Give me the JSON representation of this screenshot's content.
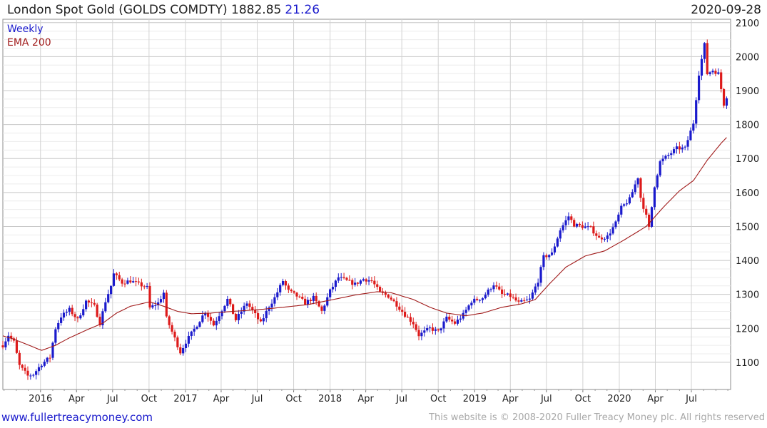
{
  "header": {
    "title": "London Spot Gold (GOLDS COMDTY)",
    "last": "1882.85",
    "change": "21.26",
    "change_color": "#1a1acc",
    "date": "2020-09-28"
  },
  "footer": {
    "website": "www.fullertreacymoney.com",
    "website_color": "#1a1acc",
    "copyright": "This website is © 2008-2020 Fuller Treacy Money plc. All rights reserved"
  },
  "chart_data": {
    "type": "candlestick",
    "timeframe": "Weekly",
    "series": [
      {
        "name": "Weekly",
        "color": "#1a1acc",
        "down_color": "#dd1a1a"
      },
      {
        "name": "EMA 200",
        "color": "#a01a1a"
      }
    ],
    "y_ticks": [
      1100,
      1200,
      1300,
      1400,
      1500,
      1600,
      1700,
      1800,
      1900,
      2000,
      2100
    ],
    "ylim": [
      1020,
      2110
    ],
    "x_ticks": [
      {
        "label": "2016",
        "date": "2016-01-01"
      },
      {
        "label": "Apr",
        "date": "2016-04-01"
      },
      {
        "label": "Jul",
        "date": "2016-07-01"
      },
      {
        "label": "Oct",
        "date": "2016-10-01"
      },
      {
        "label": "2017",
        "date": "2017-01-01"
      },
      {
        "label": "Apr",
        "date": "2017-04-01"
      },
      {
        "label": "Jul",
        "date": "2017-07-01"
      },
      {
        "label": "Oct",
        "date": "2017-10-01"
      },
      {
        "label": "2018",
        "date": "2018-01-01"
      },
      {
        "label": "Apr",
        "date": "2018-04-01"
      },
      {
        "label": "Jul",
        "date": "2018-07-01"
      },
      {
        "label": "Oct",
        "date": "2018-10-01"
      },
      {
        "label": "2019",
        "date": "2019-01-01"
      },
      {
        "label": "Apr",
        "date": "2019-04-01"
      },
      {
        "label": "Jul",
        "date": "2019-07-01"
      },
      {
        "label": "Oct",
        "date": "2019-10-01"
      },
      {
        "label": "2020",
        "date": "2020-01-01"
      },
      {
        "label": "Apr",
        "date": "2020-04-01"
      },
      {
        "label": "Jul",
        "date": "2020-07-01"
      }
    ],
    "x_range": [
      "2015-09-28",
      "2020-10-08"
    ],
    "price_anchors": [
      [
        "2015-09-28",
        1150
      ],
      [
        "2015-10-12",
        1180
      ],
      [
        "2015-10-26",
        1160
      ],
      [
        "2015-11-09",
        1090
      ],
      [
        "2015-11-30",
        1060
      ],
      [
        "2015-12-14",
        1065
      ],
      [
        "2016-01-04",
        1095
      ],
      [
        "2016-01-25",
        1115
      ],
      [
        "2016-02-08",
        1200
      ],
      [
        "2016-02-22",
        1235
      ],
      [
        "2016-03-14",
        1255
      ],
      [
        "2016-04-04",
        1225
      ],
      [
        "2016-04-25",
        1280
      ],
      [
        "2016-05-16",
        1265
      ],
      [
        "2016-05-30",
        1215
      ],
      [
        "2016-06-13",
        1280
      ],
      [
        "2016-06-27",
        1325
      ],
      [
        "2016-07-04",
        1360
      ],
      [
        "2016-07-25",
        1335
      ],
      [
        "2016-08-15",
        1340
      ],
      [
        "2016-09-05",
        1330
      ],
      [
        "2016-09-26",
        1320
      ],
      [
        "2016-10-03",
        1260
      ],
      [
        "2016-10-24",
        1275
      ],
      [
        "2016-11-07",
        1305
      ],
      [
        "2016-11-14",
        1230
      ],
      [
        "2016-12-05",
        1170
      ],
      [
        "2016-12-19",
        1130
      ],
      [
        "2017-01-02",
        1160
      ],
      [
        "2017-01-30",
        1210
      ],
      [
        "2017-02-20",
        1250
      ],
      [
        "2017-03-13",
        1210
      ],
      [
        "2017-04-03",
        1255
      ],
      [
        "2017-04-17",
        1285
      ],
      [
        "2017-05-08",
        1225
      ],
      [
        "2017-06-05",
        1275
      ],
      [
        "2017-06-26",
        1240
      ],
      [
        "2017-07-10",
        1215
      ],
      [
        "2017-07-31",
        1265
      ],
      [
        "2017-08-14",
        1290
      ],
      [
        "2017-09-04",
        1340
      ],
      [
        "2017-09-18",
        1310
      ],
      [
        "2017-10-09",
        1295
      ],
      [
        "2017-10-30",
        1275
      ],
      [
        "2017-11-20",
        1290
      ],
      [
        "2017-12-11",
        1250
      ],
      [
        "2018-01-01",
        1310
      ],
      [
        "2018-01-22",
        1350
      ],
      [
        "2018-02-12",
        1340
      ],
      [
        "2018-03-05",
        1330
      ],
      [
        "2018-03-26",
        1345
      ],
      [
        "2018-04-16",
        1340
      ],
      [
        "2018-05-07",
        1305
      ],
      [
        "2018-05-28",
        1295
      ],
      [
        "2018-06-18",
        1270
      ],
      [
        "2018-07-09",
        1240
      ],
      [
        "2018-07-30",
        1215
      ],
      [
        "2018-08-13",
        1180
      ],
      [
        "2018-09-10",
        1200
      ],
      [
        "2018-10-01",
        1190
      ],
      [
        "2018-10-22",
        1230
      ],
      [
        "2018-11-12",
        1215
      ],
      [
        "2018-12-03",
        1240
      ],
      [
        "2018-12-24",
        1280
      ],
      [
        "2019-01-21",
        1290
      ],
      [
        "2019-02-18",
        1330
      ],
      [
        "2019-03-11",
        1300
      ],
      [
        "2019-04-01",
        1295
      ],
      [
        "2019-04-22",
        1275
      ],
      [
        "2019-05-20",
        1285
      ],
      [
        "2019-06-10",
        1340
      ],
      [
        "2019-06-24",
        1410
      ],
      [
        "2019-07-15",
        1420
      ],
      [
        "2019-08-05",
        1490
      ],
      [
        "2019-08-26",
        1530
      ],
      [
        "2019-09-09",
        1505
      ],
      [
        "2019-09-30",
        1500
      ],
      [
        "2019-10-21",
        1495
      ],
      [
        "2019-11-11",
        1465
      ],
      [
        "2019-12-02",
        1470
      ],
      [
        "2019-12-23",
        1510
      ],
      [
        "2020-01-06",
        1555
      ],
      [
        "2020-01-27",
        1580
      ],
      [
        "2020-02-17",
        1645
      ],
      [
        "2020-02-24",
        1585
      ],
      [
        "2020-03-09",
        1530
      ],
      [
        "2020-03-16",
        1495
      ],
      [
        "2020-03-30",
        1620
      ],
      [
        "2020-04-13",
        1690
      ],
      [
        "2020-05-04",
        1710
      ],
      [
        "2020-05-25",
        1730
      ],
      [
        "2020-06-15",
        1730
      ],
      [
        "2020-07-06",
        1805
      ],
      [
        "2020-07-20",
        1950
      ],
      [
        "2020-08-03",
        2035
      ],
      [
        "2020-08-10",
        1950
      ],
      [
        "2020-08-24",
        1960
      ],
      [
        "2020-09-07",
        1950
      ],
      [
        "2020-09-21",
        1860
      ],
      [
        "2020-09-28",
        1882.85
      ]
    ],
    "ema_anchors": [
      [
        "2015-09-28",
        1178
      ],
      [
        "2015-10-26",
        1168
      ],
      [
        "2015-12-14",
        1145
      ],
      [
        "2016-01-04",
        1135
      ],
      [
        "2016-02-08",
        1150
      ],
      [
        "2016-03-14",
        1172
      ],
      [
        "2016-05-02",
        1198
      ],
      [
        "2016-06-06",
        1215
      ],
      [
        "2016-07-11",
        1245
      ],
      [
        "2016-08-15",
        1265
      ],
      [
        "2016-10-03",
        1278
      ],
      [
        "2016-11-07",
        1265
      ],
      [
        "2016-12-12",
        1250
      ],
      [
        "2017-01-16",
        1243
      ],
      [
        "2017-03-06",
        1245
      ],
      [
        "2017-05-01",
        1250
      ],
      [
        "2017-07-03",
        1255
      ],
      [
        "2017-09-04",
        1262
      ],
      [
        "2017-11-06",
        1270
      ],
      [
        "2018-01-01",
        1283
      ],
      [
        "2018-03-05",
        1298
      ],
      [
        "2018-04-30",
        1308
      ],
      [
        "2018-06-04",
        1305
      ],
      [
        "2018-07-30",
        1285
      ],
      [
        "2018-09-10",
        1262
      ],
      [
        "2018-10-22",
        1245
      ],
      [
        "2018-12-10",
        1237
      ],
      [
        "2019-01-21",
        1245
      ],
      [
        "2019-03-11",
        1262
      ],
      [
        "2019-04-29",
        1272
      ],
      [
        "2019-06-03",
        1285
      ],
      [
        "2019-07-08",
        1330
      ],
      [
        "2019-08-19",
        1380
      ],
      [
        "2019-10-07",
        1413
      ],
      [
        "2019-11-25",
        1428
      ],
      [
        "2020-01-13",
        1460
      ],
      [
        "2020-03-09",
        1500
      ],
      [
        "2020-04-20",
        1555
      ],
      [
        "2020-06-01",
        1605
      ],
      [
        "2020-07-06",
        1635
      ],
      [
        "2020-08-10",
        1695
      ],
      [
        "2020-09-14",
        1745
      ],
      [
        "2020-09-28",
        1762
      ]
    ]
  }
}
